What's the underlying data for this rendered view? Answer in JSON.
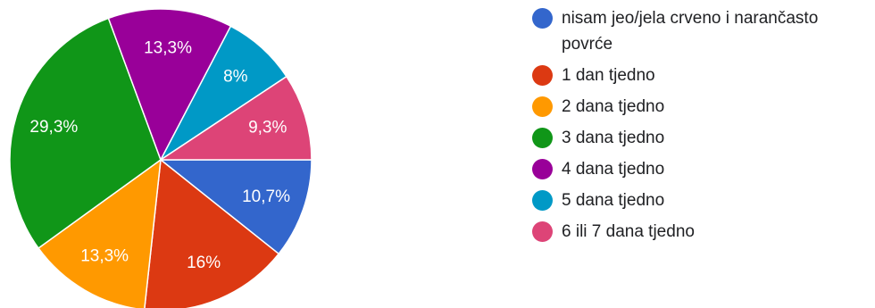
{
  "chart_data": {
    "type": "pie",
    "categories": [
      "nisam jeo/jela crveno i narančasto povrće",
      "1 dan tjedno",
      "2 dana tjedno",
      "3 dana tjedno",
      "4 dana tjedno",
      "5 dana tjedno",
      "6 ili 7 dana tjedno"
    ],
    "values": [
      10.7,
      16,
      13.3,
      29.3,
      13.3,
      8,
      9.3
    ],
    "data_labels": [
      "10,7%",
      "16%",
      "13,3%",
      "29,3%",
      "13,3%",
      "8%",
      "9,3%"
    ],
    "colors": [
      "#3366cc",
      "#dc3912",
      "#ff9900",
      "#109618",
      "#990099",
      "#0099c6",
      "#dd4477"
    ],
    "slice_order": "clockwise from 3 o'clock",
    "legend_position": "right",
    "title": ""
  }
}
